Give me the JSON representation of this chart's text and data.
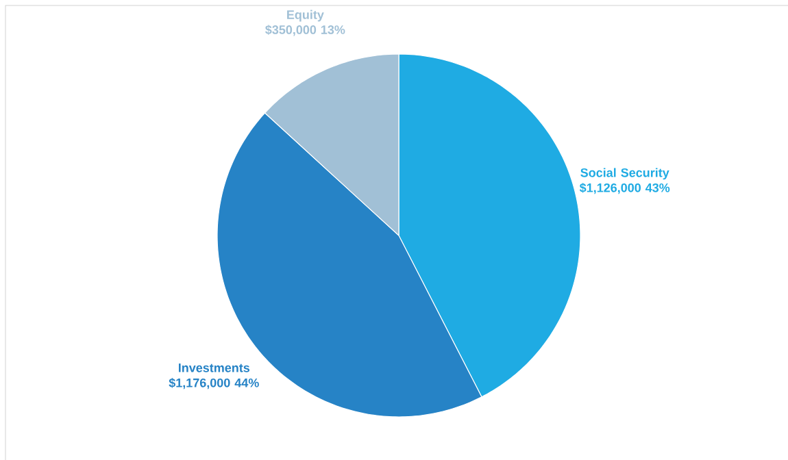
{
  "chart_data": {
    "type": "pie",
    "categories": [
      "Social Security",
      "Investments",
      "Equity"
    ],
    "values": [
      1126000,
      1176000,
      350000
    ],
    "value_labels": [
      "$1,126,000 43%",
      "$1,176,000 44%",
      "$350,000 13%"
    ],
    "colors": [
      "#1fabe3",
      "#2683c6",
      "#a1c0d6"
    ]
  }
}
